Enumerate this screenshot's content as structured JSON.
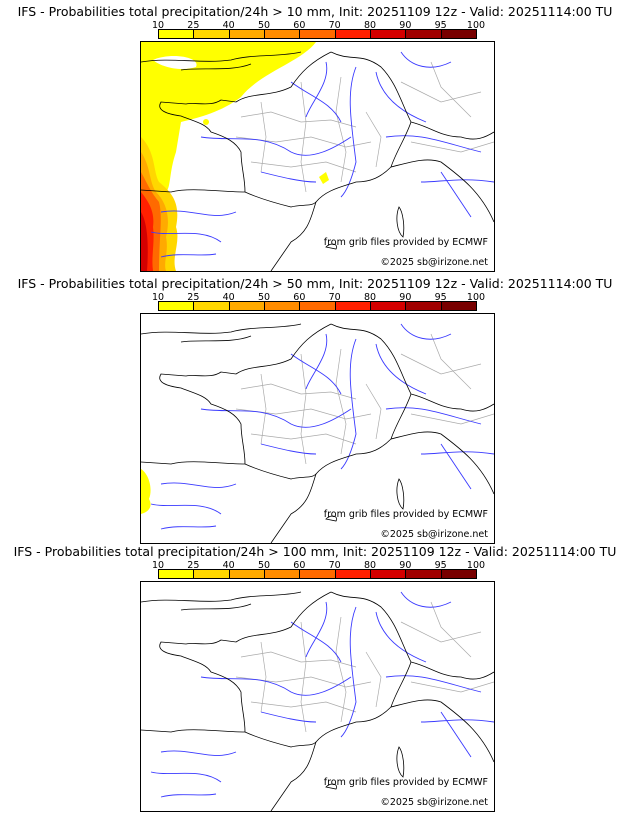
{
  "colorbar": {
    "ticks": [
      "10",
      "25",
      "40",
      "50",
      "60",
      "70",
      "80",
      "90",
      "95",
      "100"
    ],
    "colors": [
      "#ffff00",
      "#ffd700",
      "#ffaa00",
      "#ff8c00",
      "#ff6a00",
      "#ff2000",
      "#d40000",
      "#a00000",
      "#780000"
    ]
  },
  "panels": [
    {
      "title": "IFS - Probabilities total precipitation/24h > 10 mm, Init: 20251109 12z - Valid: 20251114:00 TU",
      "source": "from grib files provided by ECMWF",
      "copyright": "©2025 sb@irizone.net"
    },
    {
      "title": "IFS - Probabilities total precipitation/24h > 50 mm, Init: 20251109 12z - Valid: 20251114:00 TU",
      "source": "from grib files provided by ECMWF",
      "copyright": "©2025 sb@irizone.net"
    },
    {
      "title": "IFS - Probabilities total precipitation/24h > 100 mm, Init: 20251109 12z - Valid: 20251114:00 TU",
      "source": "from grib files provided by ECMWF",
      "copyright": "©2025 sb@irizone.net"
    }
  ]
}
